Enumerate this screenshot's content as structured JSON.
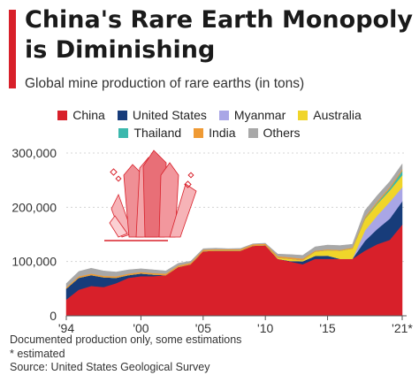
{
  "header": {
    "title": "China's Rare Earth Monopoly is Diminishing",
    "subtitle": "Global mine production of rare earths (in tons)"
  },
  "colors": {
    "accent": "#d8202a",
    "china": "#d8202a",
    "united_states": "#173c7a",
    "myanmar": "#a9a6e6",
    "australia": "#f0d52a",
    "thailand": "#3bb8ad",
    "india": "#ef9a34",
    "others": "#a8a8a8"
  },
  "chart_data": {
    "type": "area",
    "stacked": true,
    "x": [
      1994,
      1995,
      1996,
      1997,
      1998,
      1999,
      2000,
      2001,
      2002,
      2003,
      2004,
      2005,
      2006,
      2007,
      2008,
      2009,
      2010,
      2011,
      2012,
      2013,
      2014,
      2015,
      2016,
      2017,
      2018,
      2019,
      2020,
      2021
    ],
    "xticks": [
      1994,
      2000,
      2005,
      2010,
      2015,
      2021
    ],
    "xticklabels": [
      "'94",
      "'00",
      "'05",
      "'10",
      "'15",
      "'21*"
    ],
    "ylim": [
      0,
      300000
    ],
    "yticks": [
      0,
      100000,
      200000,
      300000
    ],
    "yticklabels": [
      "0",
      "100,000",
      "200,000",
      "300,000"
    ],
    "grid": true,
    "legend_position": "top",
    "series": [
      {
        "name": "China",
        "color": "#d8202a",
        "values": [
          30000,
          48000,
          55000,
          53000,
          60000,
          70000,
          73000,
          73000,
          75000,
          90000,
          95000,
          119000,
          120000,
          120000,
          120000,
          129000,
          130000,
          105000,
          100000,
          95000,
          105000,
          105000,
          105000,
          105000,
          120000,
          132000,
          140000,
          168000
        ]
      },
      {
        "name": "United States",
        "color": "#173c7a",
        "values": [
          20000,
          22000,
          20000,
          18000,
          10000,
          5000,
          5000,
          3000,
          0,
          0,
          0,
          0,
          0,
          0,
          0,
          0,
          0,
          0,
          1000,
          5500,
          5400,
          5900,
          0,
          0,
          18000,
          28000,
          39000,
          43000
        ]
      },
      {
        "name": "Myanmar",
        "color": "#a9a6e6",
        "values": [
          0,
          0,
          0,
          0,
          0,
          0,
          0,
          0,
          0,
          0,
          0,
          0,
          0,
          0,
          0,
          0,
          0,
          0,
          0,
          0,
          0,
          0,
          0,
          0,
          19000,
          25000,
          31000,
          26000
        ]
      },
      {
        "name": "Australia",
        "color": "#f0d52a",
        "values": [
          0,
          0,
          0,
          0,
          0,
          0,
          0,
          0,
          0,
          0,
          0,
          0,
          0,
          0,
          0,
          0,
          0,
          2000,
          4000,
          2000,
          8000,
          10000,
          15000,
          19000,
          21000,
          21000,
          21000,
          22000
        ]
      },
      {
        "name": "Thailand",
        "color": "#3bb8ad",
        "values": [
          0,
          0,
          0,
          0,
          0,
          0,
          0,
          0,
          0,
          0,
          0,
          0,
          0,
          0,
          0,
          0,
          0,
          0,
          0,
          0,
          0,
          0,
          0,
          0,
          1000,
          2000,
          3600,
          8000
        ]
      },
      {
        "name": "India",
        "color": "#ef9a34",
        "values": [
          2500,
          2700,
          2700,
          2700,
          2700,
          2700,
          2700,
          2700,
          2700,
          2700,
          2700,
          2700,
          2700,
          2700,
          2700,
          2700,
          2800,
          2800,
          2900,
          2900,
          1700,
          1500,
          1500,
          1800,
          2900,
          2900,
          2900,
          2900
        ]
      },
      {
        "name": "Others",
        "color": "#a8a8a8",
        "values": [
          7000,
          9000,
          10000,
          9000,
          8000,
          7000,
          6000,
          6000,
          5000,
          4000,
          3000,
          2000,
          2000,
          1000,
          1500,
          1000,
          1000,
          4000,
          5000,
          6000,
          7000,
          8000,
          8000,
          6000,
          12000,
          11000,
          10000,
          10000
        ]
      }
    ]
  },
  "footer": {
    "note1": "Documented production only, some estimations",
    "note2": "* estimated",
    "source": "Source: United States Geological Survey"
  }
}
